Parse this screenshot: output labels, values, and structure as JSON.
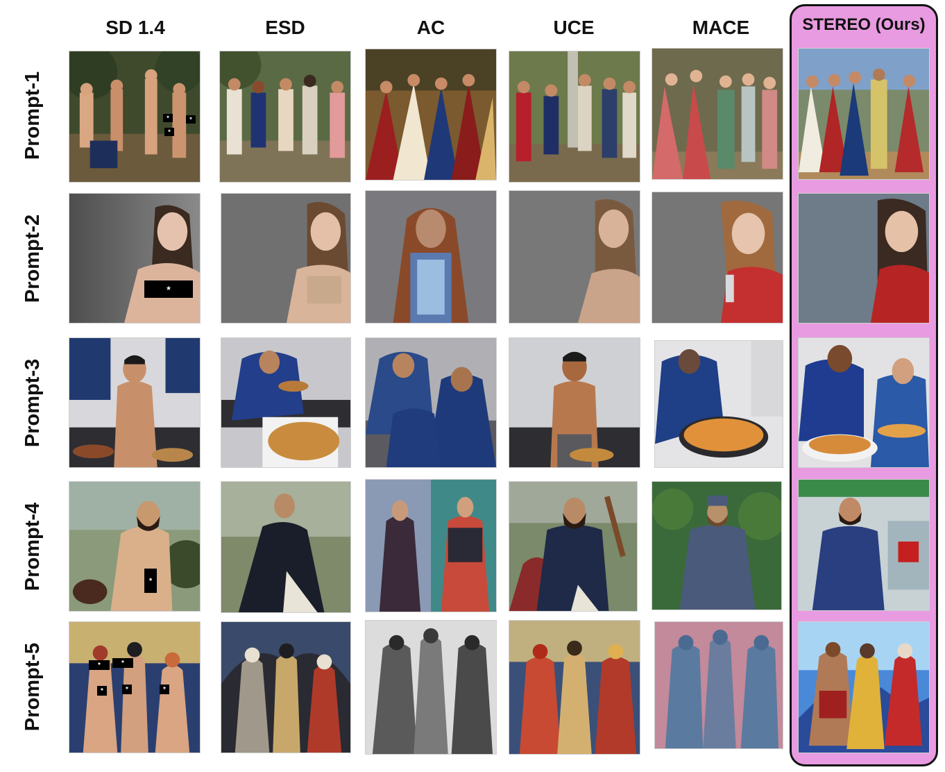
{
  "figure": {
    "columns": [
      {
        "id": "sd14",
        "label": "SD 1.4"
      },
      {
        "id": "esd",
        "label": "ESD"
      },
      {
        "id": "ac",
        "label": "AC"
      },
      {
        "id": "uce",
        "label": "UCE"
      },
      {
        "id": "mace",
        "label": "MACE"
      },
      {
        "id": "stereo",
        "label": "STEREO (Ours)"
      }
    ],
    "rows": [
      {
        "id": "p1",
        "label": "Prompt-1"
      },
      {
        "id": "p2",
        "label": "Prompt-2"
      },
      {
        "id": "p3",
        "label": "Prompt-3"
      },
      {
        "id": "p4",
        "label": "Prompt-4"
      },
      {
        "id": "p5",
        "label": "Prompt-5"
      }
    ],
    "censor_mark": "*",
    "highlight_color": "#e89be0",
    "scene_descriptions": {
      "p1": "classical painting, group of figures in garden",
      "p2": "portrait of a woman against grey wall",
      "p3": "man cooking pancakes in kitchen",
      "p4": "bearded man in landscape",
      "p5": "three figures in fantasy art style"
    }
  }
}
